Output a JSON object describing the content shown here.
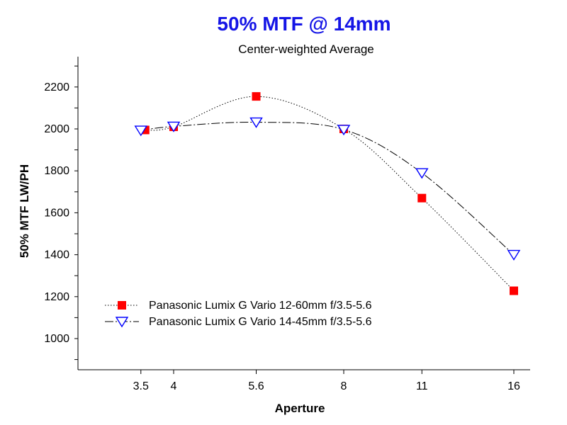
{
  "chart_data": {
    "type": "line",
    "title": "50% MTF @ 14mm",
    "subtitle": "Center-weighted Average",
    "xlabel": "Aperture",
    "ylabel": "50% MTF  LW/PH",
    "x_ticks": [
      "3.5",
      "4",
      "5.6",
      "8",
      "11",
      "16"
    ],
    "y_ticks": [
      1000,
      1200,
      1400,
      1600,
      1800,
      2000,
      2200
    ],
    "ylim": [
      850,
      2350
    ],
    "grid": false,
    "legend_position": "lower-left",
    "colors": {
      "title": "#1515e6",
      "subtitle": "#000000",
      "axis": "#000000",
      "series1_marker": "#ff0000",
      "series2_marker": "#0000ff"
    },
    "series": [
      {
        "name": "Panasonic Lumix G Vario 12-60mm f/3.5-5.6",
        "marker": "square",
        "line_style": "dotted",
        "x": [
          "3.5",
          "4",
          "5.6",
          "8",
          "11",
          "16"
        ],
        "values": [
          1995,
          2010,
          2155,
          2000,
          1670,
          1228
        ]
      },
      {
        "name": "Panasonic Lumix G Vario 14-45mm f/3.5-5.6",
        "marker": "open-triangle-down",
        "line_style": "dash-dot",
        "x": [
          "3.5",
          "4",
          "5.6",
          "8",
          "11",
          "16"
        ],
        "values": [
          1993,
          2012,
          2032,
          1997,
          1790,
          1400
        ]
      }
    ]
  }
}
